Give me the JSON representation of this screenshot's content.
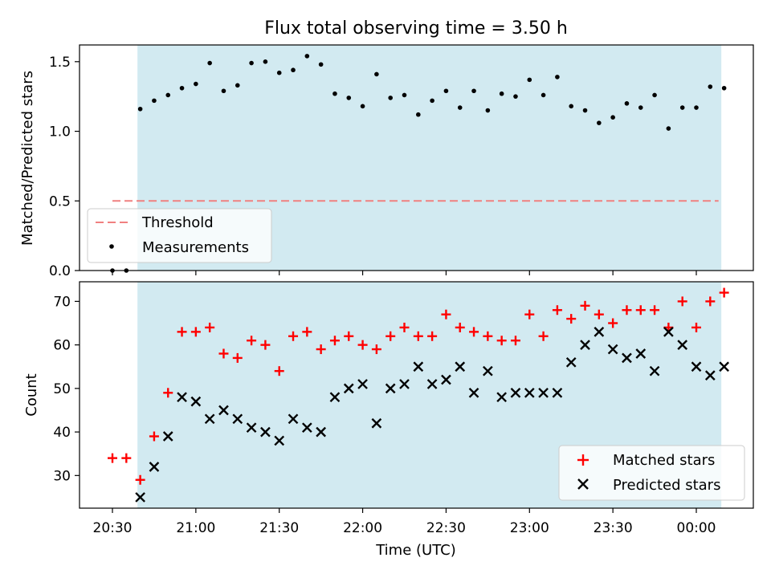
{
  "chart_data": [
    {
      "type": "scatter",
      "title": "Flux total observing time = 3.50 h",
      "ylabel": "Matched/Predicted stars",
      "xlabel": "",
      "ylim": [
        0,
        1.62
      ],
      "yticks": [
        "0.0",
        "0.5",
        "1.0",
        "1.5"
      ],
      "ytick_values": [
        0,
        0.5,
        1.0,
        1.5
      ],
      "shaded_region_color": "#add8e6",
      "shaded_region": [
        "20:39",
        "00:09"
      ],
      "legend": {
        "position": "lower-left",
        "entries": [
          "Threshold",
          "Measurements"
        ]
      },
      "threshold": {
        "name": "Threshold",
        "value": 0.5,
        "x_range": [
          "20:30",
          "00:08"
        ],
        "color": "#f08080"
      },
      "series": [
        {
          "name": "Measurements",
          "color": "#000000",
          "x": [
            "20:30",
            "20:35",
            "20:40",
            "20:45",
            "20:50",
            "20:55",
            "21:00",
            "21:05",
            "21:10",
            "21:15",
            "21:20",
            "21:25",
            "21:30",
            "21:35",
            "21:40",
            "21:45",
            "21:50",
            "21:55",
            "22:00",
            "22:05",
            "22:10",
            "22:15",
            "22:20",
            "22:25",
            "22:30",
            "22:35",
            "22:40",
            "22:45",
            "22:50",
            "22:55",
            "23:00",
            "23:05",
            "23:10",
            "23:15",
            "23:20",
            "23:25",
            "23:30",
            "23:35",
            "23:40",
            "23:45",
            "23:50",
            "23:55",
            "00:00",
            "00:05",
            "00:10"
          ],
          "values": [
            0.0,
            0.0,
            1.16,
            1.22,
            1.26,
            1.31,
            1.34,
            1.49,
            1.29,
            1.33,
            1.49,
            1.5,
            1.42,
            1.44,
            1.54,
            1.48,
            1.27,
            1.24,
            1.18,
            1.41,
            1.24,
            1.26,
            1.12,
            1.22,
            1.29,
            1.17,
            1.29,
            1.15,
            1.27,
            1.25,
            1.37,
            1.26,
            1.39,
            1.18,
            1.15,
            1.06,
            1.1,
            1.2,
            1.17,
            1.26,
            1.02,
            1.17,
            1.17,
            1.32,
            1.31
          ]
        }
      ]
    },
    {
      "type": "scatter",
      "title": "",
      "ylabel": "Count",
      "xlabel": "Time (UTC)",
      "ylim": [
        22.5,
        74.5
      ],
      "yticks": [
        "30",
        "40",
        "50",
        "60",
        "70"
      ],
      "ytick_values": [
        30,
        40,
        50,
        60,
        70
      ],
      "xticks": [
        "20:30",
        "21:00",
        "21:30",
        "22:00",
        "22:30",
        "23:00",
        "23:30",
        "00:00"
      ],
      "shaded_region_color": "#add8e6",
      "legend": {
        "position": "lower-right",
        "entries": [
          "Matched stars",
          "Predicted stars"
        ]
      },
      "series": [
        {
          "name": "Matched stars",
          "marker": "plus",
          "color": "#ff0000",
          "x": [
            "20:30",
            "20:35",
            "20:40",
            "20:45",
            "20:50",
            "20:55",
            "21:00",
            "21:05",
            "21:10",
            "21:15",
            "21:20",
            "21:25",
            "21:30",
            "21:35",
            "21:40",
            "21:45",
            "21:50",
            "21:55",
            "22:00",
            "22:05",
            "22:10",
            "22:15",
            "22:20",
            "22:25",
            "22:30",
            "22:35",
            "22:40",
            "22:45",
            "22:50",
            "22:55",
            "23:00",
            "23:05",
            "23:10",
            "23:15",
            "23:20",
            "23:25",
            "23:30",
            "23:35",
            "23:40",
            "23:45",
            "23:50",
            "23:55",
            "00:00",
            "00:05",
            "00:10"
          ],
          "values": [
            34,
            34,
            29,
            39,
            49,
            63,
            63,
            64,
            58,
            57,
            61,
            60,
            54,
            62,
            63,
            59,
            61,
            62,
            60,
            59,
            62,
            64,
            62,
            62,
            67,
            64,
            63,
            62,
            61,
            61,
            67,
            62,
            68,
            66,
            69,
            67,
            65,
            68,
            68,
            68,
            64,
            70,
            64,
            70,
            72
          ]
        },
        {
          "name": "Predicted stars",
          "marker": "x",
          "color": "#000000",
          "x": [
            "20:40",
            "20:45",
            "20:50",
            "20:55",
            "21:00",
            "21:05",
            "21:10",
            "21:15",
            "21:20",
            "21:25",
            "21:30",
            "21:35",
            "21:40",
            "21:45",
            "21:50",
            "21:55",
            "22:00",
            "22:05",
            "22:10",
            "22:15",
            "22:20",
            "22:25",
            "22:30",
            "22:35",
            "22:40",
            "22:45",
            "22:50",
            "22:55",
            "23:00",
            "23:05",
            "23:10",
            "23:15",
            "23:20",
            "23:25",
            "23:30",
            "23:35",
            "23:40",
            "23:45",
            "23:50",
            "23:55",
            "00:00",
            "00:05",
            "00:10"
          ],
          "values": [
            25,
            32,
            39,
            48,
            47,
            43,
            45,
            43,
            41,
            40,
            38,
            43,
            41,
            40,
            48,
            50,
            51,
            42,
            50,
            51,
            55,
            51,
            52,
            55,
            49,
            54,
            48,
            49,
            49,
            49,
            49,
            56,
            60,
            63,
            59,
            57,
            58,
            54,
            63,
            60,
            55,
            53,
            55
          ]
        }
      ]
    }
  ]
}
